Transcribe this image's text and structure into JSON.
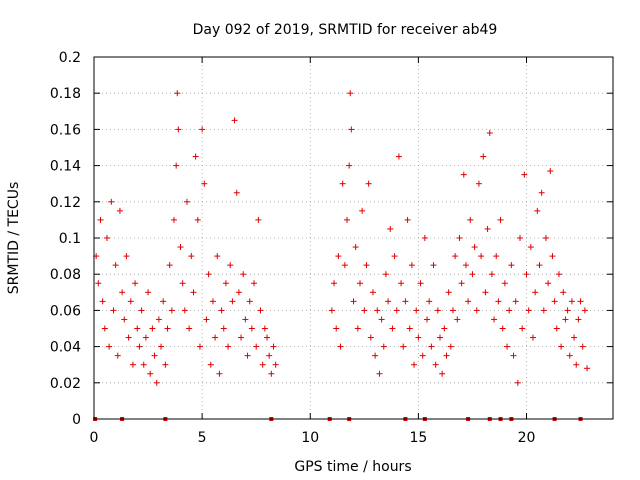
{
  "chart_data": {
    "type": "scatter",
    "title": "Day 092 of 2019, SRMTID for receiver ab49",
    "xlabel": "GPS time / hours",
    "ylabel": "SRMTID / TECUs",
    "xlim": [
      0,
      24
    ],
    "ylim": [
      0,
      0.2
    ],
    "xticks": [
      0,
      5,
      10,
      15,
      20
    ],
    "xtick_labels": [
      "0",
      "5",
      "10",
      "15",
      "20"
    ],
    "yticks": [
      0,
      0.02,
      0.04,
      0.06,
      0.08,
      0.1,
      0.12,
      0.14,
      0.16,
      0.18,
      0.2
    ],
    "ytick_labels": [
      "0",
      "0.02",
      "0.04",
      "0.06",
      "0.08",
      "0.1",
      "0.12",
      "0.14",
      "0.16",
      "0.18",
      "0.2"
    ],
    "grid": true,
    "marker": "plus",
    "color": "#e00000",
    "data_gap_hours": [
      8.5,
      10.8
    ],
    "series": [
      {
        "name": "SRMTID",
        "points": [
          [
            0.1,
            0.09
          ],
          [
            0.2,
            0.075
          ],
          [
            0.3,
            0.11
          ],
          [
            0.4,
            0.065
          ],
          [
            0.5,
            0.05
          ],
          [
            0.6,
            0.1
          ],
          [
            0.7,
            0.04
          ],
          [
            0.8,
            0.12
          ],
          [
            0.9,
            0.06
          ],
          [
            1.0,
            0.085
          ],
          [
            1.1,
            0.035
          ],
          [
            1.2,
            0.115
          ],
          [
            1.3,
            0.07
          ],
          [
            1.4,
            0.055
          ],
          [
            1.5,
            0.09
          ],
          [
            1.6,
            0.045
          ],
          [
            1.7,
            0.065
          ],
          [
            1.8,
            0.03
          ],
          [
            1.9,
            0.075
          ],
          [
            2.0,
            0.05
          ],
          [
            2.1,
            0.04
          ],
          [
            2.2,
            0.06
          ],
          [
            2.3,
            0.03
          ],
          [
            2.4,
            0.045
          ],
          [
            2.5,
            0.07
          ],
          [
            2.6,
            0.025
          ],
          [
            2.7,
            0.05
          ],
          [
            2.8,
            0.035
          ],
          [
            2.9,
            0.02
          ],
          [
            3.0,
            0.055
          ],
          [
            3.1,
            0.04
          ],
          [
            3.2,
            0.065
          ],
          [
            3.3,
            0.03
          ],
          [
            3.4,
            0.05
          ],
          [
            3.5,
            0.085
          ],
          [
            3.6,
            0.06
          ],
          [
            3.7,
            0.11
          ],
          [
            3.8,
            0.14
          ],
          [
            3.85,
            0.18
          ],
          [
            3.9,
            0.16
          ],
          [
            4.0,
            0.095
          ],
          [
            4.1,
            0.075
          ],
          [
            4.2,
            0.06
          ],
          [
            4.3,
            0.12
          ],
          [
            4.4,
            0.05
          ],
          [
            4.5,
            0.09
          ],
          [
            4.6,
            0.07
          ],
          [
            4.7,
            0.145
          ],
          [
            4.8,
            0.11
          ],
          [
            4.9,
            0.04
          ],
          [
            5.0,
            0.16
          ],
          [
            5.1,
            0.13
          ],
          [
            5.2,
            0.055
          ],
          [
            5.3,
            0.08
          ],
          [
            5.4,
            0.03
          ],
          [
            5.5,
            0.065
          ],
          [
            5.6,
            0.045
          ],
          [
            5.7,
            0.09
          ],
          [
            5.8,
            0.025
          ],
          [
            5.9,
            0.06
          ],
          [
            6.0,
            0.05
          ],
          [
            6.1,
            0.075
          ],
          [
            6.2,
            0.04
          ],
          [
            6.3,
            0.085
          ],
          [
            6.4,
            0.065
          ],
          [
            6.5,
            0.165
          ],
          [
            6.6,
            0.125
          ],
          [
            6.7,
            0.07
          ],
          [
            6.8,
            0.045
          ],
          [
            6.9,
            0.08
          ],
          [
            7.0,
            0.055
          ],
          [
            7.1,
            0.035
          ],
          [
            7.2,
            0.065
          ],
          [
            7.3,
            0.05
          ],
          [
            7.4,
            0.075
          ],
          [
            7.5,
            0.04
          ],
          [
            7.6,
            0.11
          ],
          [
            7.7,
            0.06
          ],
          [
            7.8,
            0.03
          ],
          [
            7.9,
            0.05
          ],
          [
            8.0,
            0.045
          ],
          [
            8.1,
            0.035
          ],
          [
            8.2,
            0.025
          ],
          [
            8.3,
            0.04
          ],
          [
            8.4,
            0.03
          ],
          [
            11.0,
            0.06
          ],
          [
            11.1,
            0.075
          ],
          [
            11.2,
            0.05
          ],
          [
            11.3,
            0.09
          ],
          [
            11.4,
            0.04
          ],
          [
            11.5,
            0.13
          ],
          [
            11.6,
            0.085
          ],
          [
            11.7,
            0.11
          ],
          [
            11.8,
            0.14
          ],
          [
            11.85,
            0.18
          ],
          [
            11.9,
            0.16
          ],
          [
            12.0,
            0.065
          ],
          [
            12.1,
            0.095
          ],
          [
            12.2,
            0.05
          ],
          [
            12.3,
            0.075
          ],
          [
            12.4,
            0.115
          ],
          [
            12.5,
            0.06
          ],
          [
            12.6,
            0.085
          ],
          [
            12.7,
            0.13
          ],
          [
            12.8,
            0.045
          ],
          [
            12.9,
            0.07
          ],
          [
            13.0,
            0.035
          ],
          [
            13.1,
            0.06
          ],
          [
            13.2,
            0.025
          ],
          [
            13.3,
            0.055
          ],
          [
            13.4,
            0.04
          ],
          [
            13.5,
            0.08
          ],
          [
            13.6,
            0.065
          ],
          [
            13.7,
            0.105
          ],
          [
            13.8,
            0.05
          ],
          [
            13.9,
            0.09
          ],
          [
            14.0,
            0.06
          ],
          [
            14.1,
            0.145
          ],
          [
            14.2,
            0.075
          ],
          [
            14.3,
            0.04
          ],
          [
            14.4,
            0.065
          ],
          [
            14.5,
            0.11
          ],
          [
            14.6,
            0.05
          ],
          [
            14.7,
            0.085
          ],
          [
            14.8,
            0.03
          ],
          [
            14.9,
            0.06
          ],
          [
            15.0,
            0.045
          ],
          [
            15.1,
            0.075
          ],
          [
            15.2,
            0.035
          ],
          [
            15.3,
            0.1
          ],
          [
            15.4,
            0.055
          ],
          [
            15.5,
            0.065
          ],
          [
            15.6,
            0.04
          ],
          [
            15.7,
            0.085
          ],
          [
            15.8,
            0.03
          ],
          [
            15.9,
            0.06
          ],
          [
            16.0,
            0.045
          ],
          [
            16.1,
            0.025
          ],
          [
            16.2,
            0.05
          ],
          [
            16.3,
            0.035
          ],
          [
            16.4,
            0.07
          ],
          [
            16.5,
            0.04
          ],
          [
            16.6,
            0.06
          ],
          [
            16.7,
            0.09
          ],
          [
            16.8,
            0.055
          ],
          [
            16.9,
            0.1
          ],
          [
            17.0,
            0.075
          ],
          [
            17.1,
            0.135
          ],
          [
            17.2,
            0.085
          ],
          [
            17.3,
            0.065
          ],
          [
            17.4,
            0.11
          ],
          [
            17.5,
            0.08
          ],
          [
            17.6,
            0.095
          ],
          [
            17.7,
            0.06
          ],
          [
            17.8,
            0.13
          ],
          [
            17.9,
            0.09
          ],
          [
            18.0,
            0.145
          ],
          [
            18.1,
            0.07
          ],
          [
            18.2,
            0.105
          ],
          [
            18.3,
            0.158
          ],
          [
            18.4,
            0.08
          ],
          [
            18.5,
            0.055
          ],
          [
            18.6,
            0.09
          ],
          [
            18.7,
            0.065
          ],
          [
            18.8,
            0.11
          ],
          [
            18.9,
            0.05
          ],
          [
            19.0,
            0.075
          ],
          [
            19.1,
            0.04
          ],
          [
            19.2,
            0.06
          ],
          [
            19.3,
            0.085
          ],
          [
            19.4,
            0.035
          ],
          [
            19.5,
            0.065
          ],
          [
            19.6,
            0.02
          ],
          [
            19.7,
            0.1
          ],
          [
            19.8,
            0.05
          ],
          [
            19.9,
            0.135
          ],
          [
            20.0,
            0.08
          ],
          [
            20.1,
            0.06
          ],
          [
            20.2,
            0.095
          ],
          [
            20.3,
            0.045
          ],
          [
            20.4,
            0.07
          ],
          [
            20.5,
            0.115
          ],
          [
            20.6,
            0.085
          ],
          [
            20.7,
            0.125
          ],
          [
            20.8,
            0.06
          ],
          [
            20.9,
            0.1
          ],
          [
            21.0,
            0.075
          ],
          [
            21.1,
            0.137
          ],
          [
            21.2,
            0.09
          ],
          [
            21.3,
            0.065
          ],
          [
            21.4,
            0.05
          ],
          [
            21.5,
            0.08
          ],
          [
            21.6,
            0.04
          ],
          [
            21.7,
            0.07
          ],
          [
            21.8,
            0.055
          ],
          [
            21.9,
            0.06
          ],
          [
            22.0,
            0.035
          ],
          [
            22.1,
            0.065
          ],
          [
            22.2,
            0.045
          ],
          [
            22.3,
            0.03
          ],
          [
            22.4,
            0.055
          ],
          [
            22.5,
            0.065
          ],
          [
            22.6,
            0.04
          ],
          [
            22.7,
            0.06
          ],
          [
            22.8,
            0.028
          ]
        ]
      }
    ]
  }
}
